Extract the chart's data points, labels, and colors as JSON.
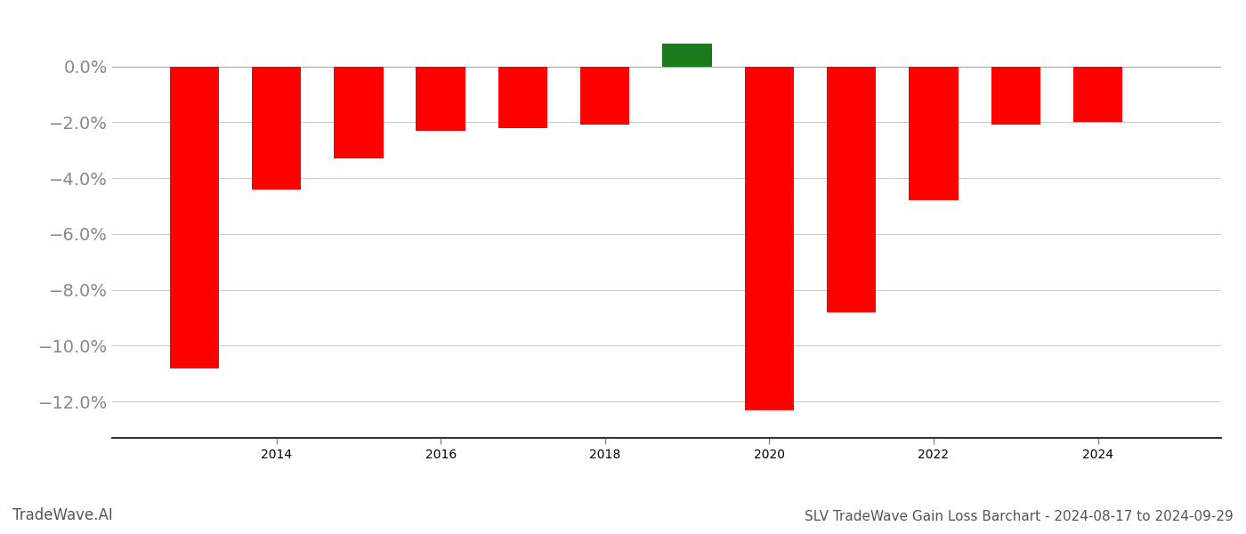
{
  "years": [
    2013,
    2014,
    2015,
    2016,
    2017,
    2018,
    2019,
    2020,
    2021,
    2022,
    2023,
    2024
  ],
  "values": [
    -0.108,
    -0.044,
    -0.033,
    -0.023,
    -0.022,
    -0.021,
    0.008,
    -0.123,
    -0.088,
    -0.048,
    -0.021,
    -0.02
  ],
  "bar_colors": [
    "#ff0000",
    "#ff0000",
    "#ff0000",
    "#ff0000",
    "#ff0000",
    "#ff0000",
    "#1a7a1a",
    "#ff0000",
    "#ff0000",
    "#ff0000",
    "#ff0000",
    "#ff0000"
  ],
  "title": "SLV TradeWave Gain Loss Barchart - 2024-08-17 to 2024-09-29",
  "watermark": "TradeWave.AI",
  "ylim": [
    -0.133,
    0.018
  ],
  "yticks": [
    0.0,
    -0.02,
    -0.04,
    -0.06,
    -0.08,
    -0.1,
    -0.12
  ],
  "background_color": "#ffffff",
  "grid_color": "#cccccc",
  "bar_width": 0.6,
  "tick_label_fontsize": 14,
  "title_fontsize": 11,
  "watermark_fontsize": 12,
  "xlim": [
    2012.0,
    2025.5
  ]
}
